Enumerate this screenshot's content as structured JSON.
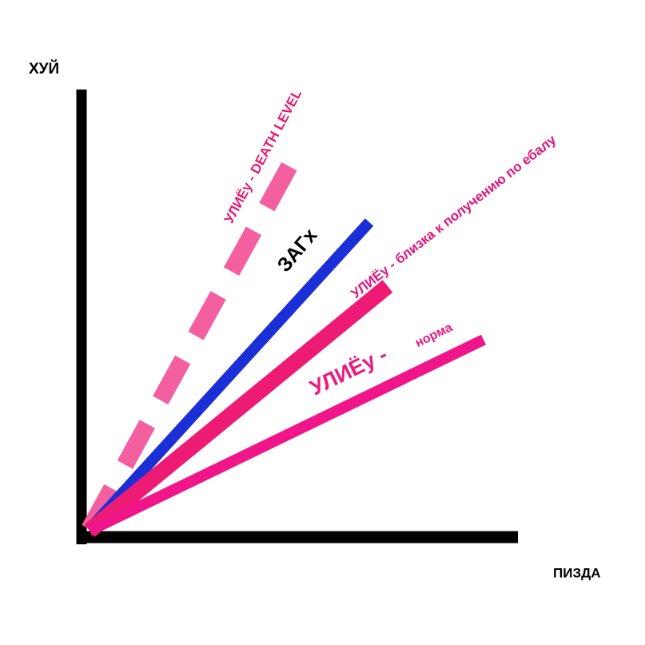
{
  "axes": {
    "y_label": "ХУЙ",
    "x_label": "ПИЗДА"
  },
  "lines": [
    {
      "label": "УЛИЁу - DEATH LEVEL"
    },
    {
      "label": "ЗАГх"
    },
    {
      "label": "УЛИЁу - близка к получению по ебалу"
    },
    {
      "label": "УЛИЁу -",
      "note": "норма"
    }
  ]
}
